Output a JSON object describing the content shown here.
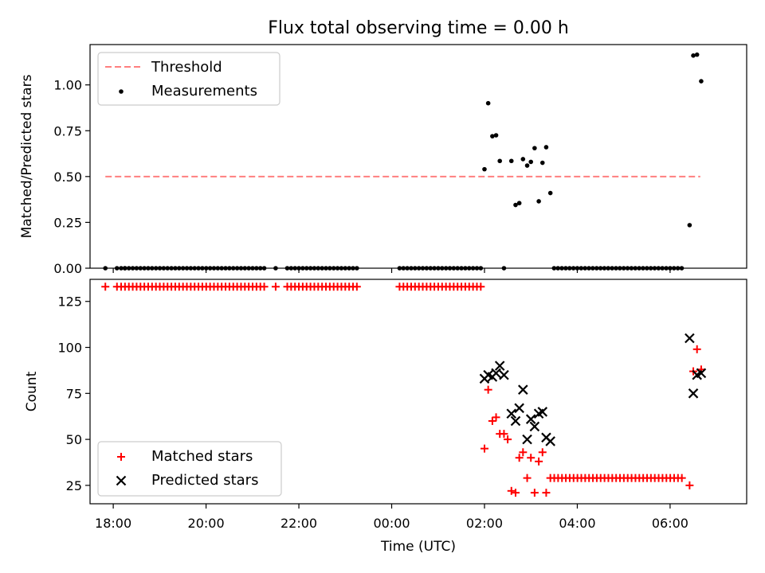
{
  "title": "Flux total observing time = 0.00 h",
  "chart_data": [
    {
      "type": "scatter",
      "panel": "top",
      "ylabel": "Matched/Predicted stars",
      "xlabel": "",
      "xlim": [
        17.5,
        31.65
      ],
      "ylim": [
        0,
        1.22
      ],
      "yticks": [
        0.0,
        0.25,
        0.5,
        0.75,
        1.0
      ],
      "ytick_labels": [
        "0.00",
        "0.25",
        "0.50",
        "0.75",
        "1.00"
      ],
      "threshold": {
        "name": "Threshold",
        "value": 0.5,
        "x_range": [
          17.83,
          30.65
        ],
        "color": "#ff7f7f"
      },
      "legend": [
        "Threshold",
        "Measurements"
      ],
      "legend_position": "upper left",
      "series": [
        {
          "name": "Measurements",
          "color": "#000000",
          "x": [
            17.83,
            18.08,
            18.25,
            26.0,
            26.08,
            26.17,
            26.25,
            26.33,
            26.42,
            26.58,
            26.67,
            26.75,
            26.83,
            26.92,
            27.0,
            27.08,
            27.17,
            27.25,
            27.33,
            27.42,
            30.42,
            30.5,
            30.58,
            30.67
          ],
          "y": [
            0,
            0,
            0,
            0.54,
            0.9,
            0.72,
            0.725,
            0.585,
            0,
            0.585,
            0.345,
            0.355,
            0.595,
            0.56,
            0.58,
            0.655,
            0.365,
            0.575,
            0.66,
            0.41,
            0.235,
            1.16,
            1.165,
            1.02
          ],
          "zero_runs": [
            {
              "x_start": 18.17,
              "x_end": 21.33,
              "value": 0
            },
            {
              "x_start": 21.5,
              "x_end": 21.5,
              "value": 0
            },
            {
              "x_start": 21.75,
              "x_end": 23.33,
              "value": 0
            },
            {
              "x_start": 24.17,
              "x_end": 25.92,
              "value": 0
            },
            {
              "x_start": 27.5,
              "x_end": 30.33,
              "value": 0
            }
          ]
        }
      ]
    },
    {
      "type": "scatter",
      "panel": "bottom",
      "ylabel": "Count",
      "xlabel": "Time (UTC)",
      "xlim": [
        17.5,
        31.65
      ],
      "ylim": [
        15,
        137
      ],
      "yticks": [
        25,
        50,
        75,
        100,
        125
      ],
      "xticks": [
        18,
        20,
        22,
        24,
        26,
        28,
        30
      ],
      "xtick_labels": [
        "18:00",
        "20:00",
        "22:00",
        "00:00",
        "02:00",
        "04:00",
        "06:00"
      ],
      "legend": [
        "Matched stars",
        "Predicted stars"
      ],
      "legend_position": "lower left",
      "series": [
        {
          "name": "Matched stars",
          "marker": "plus",
          "color": "#ff0000",
          "x": [
            17.83,
            18.08,
            26.0,
            26.08,
            26.17,
            26.25,
            26.33,
            26.42,
            26.5,
            26.58,
            26.67,
            26.75,
            26.83,
            26.92,
            27.0,
            27.08,
            27.17,
            27.25,
            27.33,
            30.42,
            30.5,
            30.58,
            30.67
          ],
          "y": [
            133,
            133,
            45,
            77,
            60,
            62,
            53,
            53,
            50,
            22,
            21,
            40,
            43,
            29,
            40,
            21,
            38,
            43,
            21,
            25,
            87,
            99,
            88
          ],
          "runs": [
            {
              "x_start": 18.17,
              "x_end": 21.33,
              "value": 133
            },
            {
              "x_start": 21.5,
              "x_end": 21.5,
              "value": 133
            },
            {
              "x_start": 21.75,
              "x_end": 23.33,
              "value": 133
            },
            {
              "x_start": 24.17,
              "x_end": 25.92,
              "value": 133
            },
            {
              "x_start": 27.42,
              "x_end": 30.33,
              "value": 29
            }
          ]
        },
        {
          "name": "Predicted stars",
          "marker": "x",
          "color": "#000000",
          "x": [
            26.0,
            26.08,
            26.17,
            26.25,
            26.33,
            26.42,
            26.58,
            26.67,
            26.75,
            26.83,
            26.92,
            27.0,
            27.08,
            27.17,
            27.25,
            27.33,
            27.42,
            30.42,
            30.5,
            30.58,
            30.67
          ],
          "y": [
            83,
            85,
            84,
            86,
            90,
            85,
            64,
            60,
            67,
            77,
            50,
            61,
            57,
            64,
            65,
            51,
            49,
            105,
            75,
            85,
            86
          ]
        }
      ]
    }
  ]
}
